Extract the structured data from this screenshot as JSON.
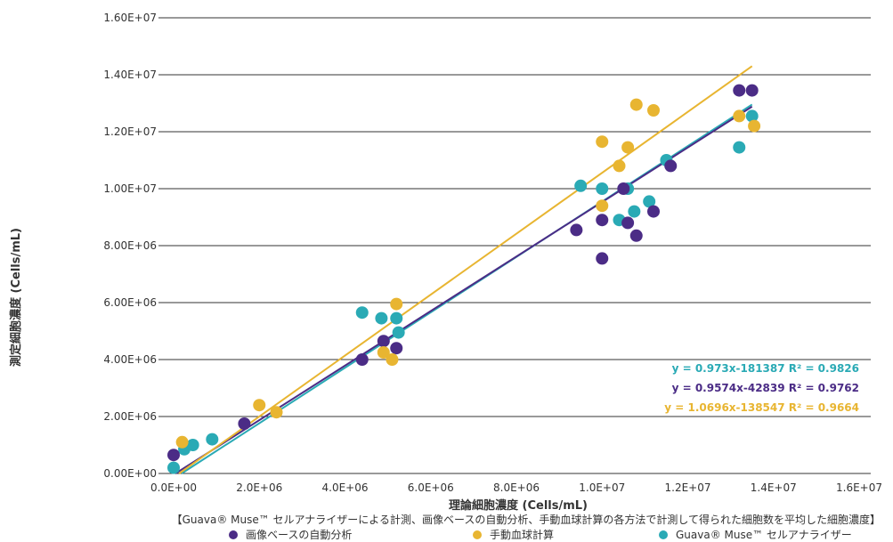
{
  "chart_data": {
    "type": "scatter",
    "xlabel": "理論細胞濃度 (Cells/mL)",
    "ylabel": "測定細胞濃度 (Cells/mL)",
    "xlim": [
      0,
      16000000
    ],
    "ylim": [
      0,
      16000000
    ],
    "x_ticks": [
      "0.0E+00",
      "2.0E+06",
      "4.0E+06",
      "6.0E+06",
      "8.0E+06",
      "1.0E+07",
      "1.2E+07",
      "1.4E+07",
      "1.6E+07"
    ],
    "y_ticks": [
      "0.00E+00",
      "2.00E+06",
      "4.00E+06",
      "6.00E+06",
      "8.00E+06",
      "1.00E+07",
      "1.20E+07",
      "1.40E+07",
      "1.60E+07"
    ],
    "grid": "horizontal",
    "caption": "【Guava® Muse™ セルアナライザーによる計測、画像ベースの自動分析、手動血球計算の各方法で計測して得られた細胞数を平均した細胞濃度】",
    "series": [
      {
        "name": "Guava® Muse™ セルアナライザー",
        "color": "#2aaab5",
        "equation": "y = 0.973x-181387 R² = 0.9826",
        "trend": {
          "slope": 0.973,
          "intercept": -181387
        },
        "points": [
          [
            0,
            200000
          ],
          [
            250000,
            850000
          ],
          [
            450000,
            1000000
          ],
          [
            900000,
            1200000
          ],
          [
            4400000,
            5650000
          ],
          [
            4850000,
            5450000
          ],
          [
            5200000,
            5450000
          ],
          [
            5250000,
            4950000
          ],
          [
            9500000,
            10100000
          ],
          [
            10000000,
            10000000
          ],
          [
            10400000,
            8900000
          ],
          [
            10600000,
            10000000
          ],
          [
            10750000,
            9200000
          ],
          [
            11100000,
            9550000
          ],
          [
            11500000,
            11000000
          ],
          [
            13200000,
            11450000
          ],
          [
            13500000,
            12550000
          ]
        ]
      },
      {
        "name": "画像ベースの自動分析",
        "color": "#4b2c86",
        "equation": "y = 0.9574x-42839 R² = 0.9762",
        "trend": {
          "slope": 0.9574,
          "intercept": -42839
        },
        "points": [
          [
            0,
            650000
          ],
          [
            1650000,
            1750000
          ],
          [
            4400000,
            4000000
          ],
          [
            4900000,
            4650000
          ],
          [
            5200000,
            4400000
          ],
          [
            9400000,
            8550000
          ],
          [
            10000000,
            8900000
          ],
          [
            10000000,
            7550000
          ],
          [
            10500000,
            10000000
          ],
          [
            10600000,
            8800000
          ],
          [
            10800000,
            8350000
          ],
          [
            11200000,
            9200000
          ],
          [
            11600000,
            10800000
          ],
          [
            13200000,
            13450000
          ],
          [
            13500000,
            13450000
          ]
        ]
      },
      {
        "name": "手動血球計算",
        "color": "#e8b531",
        "equation": "y = 1.0696x-138547 R² = 0.9664",
        "trend": {
          "slope": 1.0696,
          "intercept": -138547
        },
        "points": [
          [
            200000,
            1100000
          ],
          [
            2000000,
            2400000
          ],
          [
            2400000,
            2150000
          ],
          [
            4900000,
            4250000
          ],
          [
            5100000,
            4000000
          ],
          [
            5200000,
            5950000
          ],
          [
            10000000,
            11650000
          ],
          [
            10000000,
            9400000
          ],
          [
            10400000,
            10800000
          ],
          [
            10600000,
            11450000
          ],
          [
            10800000,
            12950000
          ],
          [
            11200000,
            12750000
          ],
          [
            13200000,
            12550000
          ],
          [
            13550000,
            12200000
          ]
        ]
      }
    ],
    "legend_order": [
      1,
      2,
      0
    ]
  }
}
